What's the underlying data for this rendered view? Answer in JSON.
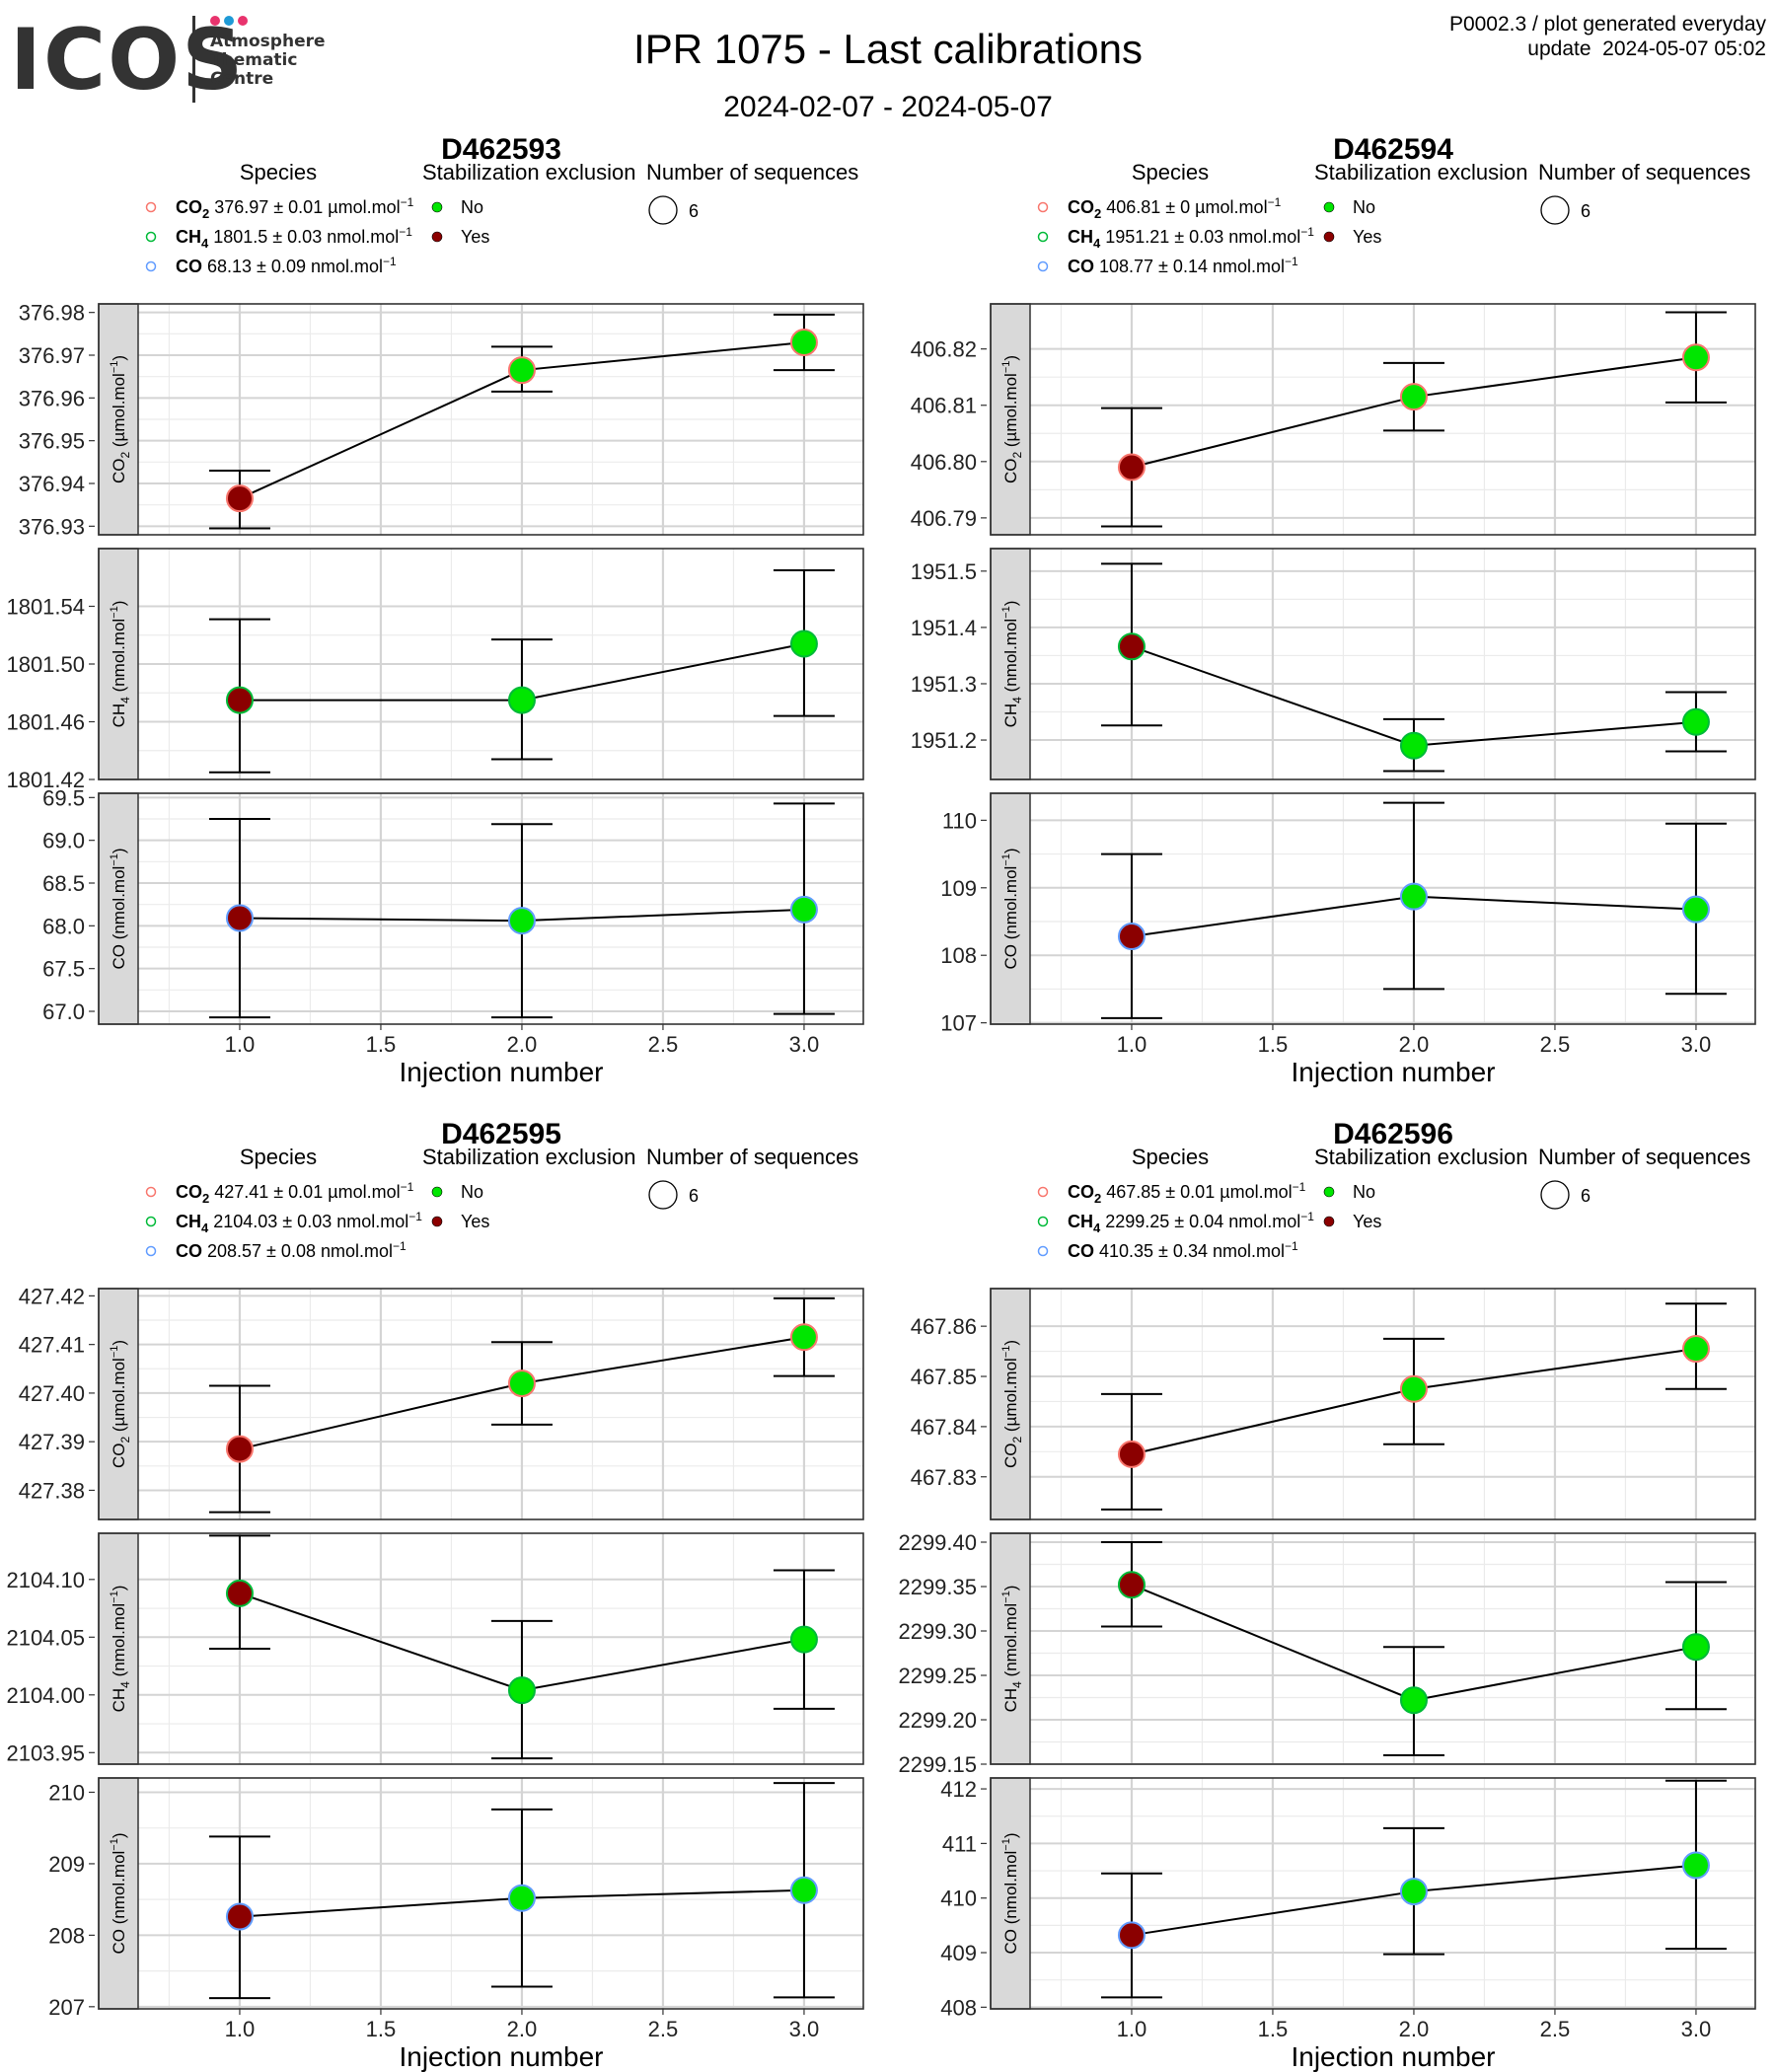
{
  "header": {
    "logo": "ICOS",
    "logo_subtitle": [
      "Atmosphere",
      "Thematic",
      "Centre"
    ],
    "logo_dot_colors": [
      "#e8336d",
      "#1e9ad6",
      "#e8336d"
    ],
    "title": "IPR 1075 - Last calibrations",
    "date_range": "2024-02-07 - 2024-05-07",
    "product_line": "P0002.3 / plot generated everyday",
    "update_line": "update  2024-05-07 05:02"
  },
  "legend_common": {
    "species_title": "Species",
    "stab_title": "Stabilization exclusion",
    "nseq_title": "Number of sequences",
    "stab_items": [
      {
        "label": "No",
        "color": "#00e600"
      },
      {
        "label": "Yes",
        "color": "#8b0000"
      }
    ],
    "species_ring_colors": {
      "CO2": "#f8766d",
      "CH4": "#00ba38",
      "CO": "#619cff"
    }
  },
  "chart_data": [
    {
      "type": "line",
      "title": "D462593",
      "xlabel": "Injection number",
      "x_ticks": [
        "1.0",
        "1.5",
        "2.0",
        "2.5",
        "3.0"
      ],
      "nseq": "6",
      "species_legend": [
        {
          "name": "CO2",
          "value": "376.97",
          "unc": "0.01",
          "unit": "µmol.mol"
        },
        {
          "name": "CH4",
          "value": "1801.5",
          "unc": "0.03",
          "unit": "nmol.mol"
        },
        {
          "name": "CO",
          "value": "68.13",
          "unc": "0.09",
          "unit": "nmol.mol"
        }
      ],
      "panels": [
        {
          "species": "CO2",
          "ylabel_unit": "(µmol.mol",
          "ylim": [
            376.928,
            376.982
          ],
          "ticks": [
            "376.93",
            "376.94",
            "376.95",
            "376.96",
            "376.97",
            "376.98"
          ],
          "x": [
            1,
            2,
            3
          ],
          "y": [
            376.9365,
            376.9665,
            376.973
          ],
          "err_low": [
            376.9295,
            376.9615,
            376.9665
          ],
          "err_high": [
            376.943,
            376.972,
            376.9795
          ],
          "excluded": [
            true,
            false,
            false
          ]
        },
        {
          "species": "CH4",
          "ylabel_unit": "(nmol.mol",
          "ylim": [
            1801.42,
            1801.58
          ],
          "ticks": [
            "1801.42",
            "1801.46",
            "1801.50",
            "1801.54"
          ],
          "x": [
            1,
            2,
            3
          ],
          "y": [
            1801.475,
            1801.475,
            1801.514
          ],
          "err_low": [
            1801.425,
            1801.434,
            1801.464
          ],
          "err_high": [
            1801.531,
            1801.517,
            1801.565
          ],
          "excluded": [
            true,
            false,
            false
          ]
        },
        {
          "species": "CO",
          "ylabel_unit": "(nmol.mol",
          "ylim": [
            66.85,
            69.55
          ],
          "ticks": [
            "67.0",
            "67.5",
            "68.0",
            "68.5",
            "69.0",
            "69.5"
          ],
          "x": [
            1,
            2,
            3
          ],
          "y": [
            68.09,
            68.06,
            68.19
          ],
          "err_low": [
            66.93,
            66.93,
            66.97
          ],
          "err_high": [
            69.25,
            69.19,
            69.43
          ],
          "excluded": [
            true,
            false,
            false
          ]
        }
      ]
    },
    {
      "type": "line",
      "title": "D462594",
      "xlabel": "Injection number",
      "x_ticks": [
        "1.0",
        "1.5",
        "2.0",
        "2.5",
        "3.0"
      ],
      "nseq": "6",
      "species_legend": [
        {
          "name": "CO2",
          "value": "406.81",
          "unc": "0",
          "unit": "µmol.mol"
        },
        {
          "name": "CH4",
          "value": "1951.21",
          "unc": "0.03",
          "unit": "nmol.mol"
        },
        {
          "name": "CO",
          "value": "108.77",
          "unc": "0.14",
          "unit": "nmol.mol"
        }
      ],
      "panels": [
        {
          "species": "CO2",
          "ylabel_unit": "(µmol.mol",
          "ylim": [
            406.787,
            406.828
          ],
          "ticks": [
            "406.79",
            "406.80",
            "406.81",
            "406.82"
          ],
          "x": [
            1,
            2,
            3
          ],
          "y": [
            406.799,
            406.8115,
            406.8185
          ],
          "err_low": [
            406.7885,
            406.8055,
            406.8105
          ],
          "err_high": [
            406.8095,
            406.8175,
            406.8265
          ],
          "excluded": [
            true,
            false,
            false
          ]
        },
        {
          "species": "CH4",
          "ylabel_unit": "(nmol.mol",
          "ylim": [
            1951.13,
            1951.54
          ],
          "ticks": [
            "1951.2",
            "1951.3",
            "1951.4",
            "1951.5"
          ],
          "x": [
            1,
            2,
            3
          ],
          "y": [
            1951.366,
            1951.19,
            1951.232
          ],
          "err_low": [
            1951.226,
            1951.145,
            1951.18
          ],
          "err_high": [
            1951.513,
            1951.237,
            1951.285
          ],
          "excluded": [
            true,
            false,
            false
          ]
        },
        {
          "species": "CO",
          "ylabel_unit": "(nmol.mol",
          "ylim": [
            106.98,
            110.4
          ],
          "ticks": [
            "107",
            "108",
            "109",
            "110"
          ],
          "x": [
            1,
            2,
            3
          ],
          "y": [
            108.28,
            108.87,
            108.68
          ],
          "err_low": [
            107.07,
            107.5,
            107.43
          ],
          "err_high": [
            109.5,
            110.26,
            109.95
          ],
          "excluded": [
            true,
            false,
            false
          ]
        }
      ]
    },
    {
      "type": "line",
      "title": "D462595",
      "xlabel": "Injection number",
      "x_ticks": [
        "1.0",
        "1.5",
        "2.0",
        "2.5",
        "3.0"
      ],
      "nseq": "6",
      "species_legend": [
        {
          "name": "CO2",
          "value": "427.41",
          "unc": "0.01",
          "unit": "µmol.mol"
        },
        {
          "name": "CH4",
          "value": "2104.03",
          "unc": "0.03",
          "unit": "nmol.mol"
        },
        {
          "name": "CO",
          "value": "208.57",
          "unc": "0.08",
          "unit": "nmol.mol"
        }
      ],
      "panels": [
        {
          "species": "CO2",
          "ylabel_unit": "(µmol.mol",
          "ylim": [
            427.374,
            427.4215
          ],
          "ticks": [
            "427.38",
            "427.39",
            "427.40",
            "427.41",
            "427.42"
          ],
          "x": [
            1,
            2,
            3
          ],
          "y": [
            427.3885,
            427.402,
            427.4115
          ],
          "err_low": [
            427.3755,
            427.3935,
            427.4035
          ],
          "err_high": [
            427.4015,
            427.4105,
            427.4195
          ],
          "excluded": [
            true,
            false,
            false
          ]
        },
        {
          "species": "CH4",
          "ylabel_unit": "(nmol.mol",
          "ylim": [
            2103.94,
            2104.14
          ],
          "ticks": [
            "2103.95",
            "2104.00",
            "2104.05",
            "2104.10"
          ],
          "x": [
            1,
            2,
            3
          ],
          "y": [
            2104.088,
            2104.004,
            2104.048
          ],
          "err_low": [
            2104.04,
            2103.945,
            2103.988
          ],
          "err_high": [
            2104.138,
            2104.064,
            2104.108
          ],
          "excluded": [
            true,
            false,
            false
          ]
        },
        {
          "species": "CO",
          "ylabel_unit": "(nmol.mol",
          "ylim": [
            206.97,
            210.2
          ],
          "ticks": [
            "207",
            "208",
            "209",
            "210"
          ],
          "x": [
            1,
            2,
            3
          ],
          "y": [
            208.26,
            208.52,
            208.63
          ],
          "err_low": [
            207.12,
            207.28,
            207.13
          ],
          "err_high": [
            209.38,
            209.76,
            210.13
          ],
          "excluded": [
            true,
            false,
            false
          ]
        }
      ]
    },
    {
      "type": "line",
      "title": "D462596",
      "xlabel": "Injection number",
      "x_ticks": [
        "1.0",
        "1.5",
        "2.0",
        "2.5",
        "3.0"
      ],
      "nseq": "6",
      "species_legend": [
        {
          "name": "CO2",
          "value": "467.85",
          "unc": "0.01",
          "unit": "µmol.mol"
        },
        {
          "name": "CH4",
          "value": "2299.25",
          "unc": "0.04",
          "unit": "nmol.mol"
        },
        {
          "name": "CO",
          "value": "410.35",
          "unc": "0.34",
          "unit": "nmol.mol"
        }
      ],
      "panels": [
        {
          "species": "CO2",
          "ylabel_unit": "(µmol.mol",
          "ylim": [
            467.8215,
            467.8675
          ],
          "ticks": [
            "467.83",
            "467.84",
            "467.85",
            "467.86"
          ],
          "x": [
            1,
            2,
            3
          ],
          "y": [
            467.8345,
            467.8475,
            467.8555
          ],
          "err_low": [
            467.8235,
            467.8365,
            467.8475
          ],
          "err_high": [
            467.8465,
            467.8575,
            467.8645
          ],
          "excluded": [
            true,
            false,
            false
          ]
        },
        {
          "species": "CH4",
          "ylabel_unit": "(nmol.mol",
          "ylim": [
            2299.15,
            2299.41
          ],
          "ticks": [
            "2299.15",
            "2299.20",
            "2299.25",
            "2299.30",
            "2299.35",
            "2299.40"
          ],
          "x": [
            1,
            2,
            3
          ],
          "y": [
            2299.352,
            2299.222,
            2299.282
          ],
          "err_low": [
            2299.305,
            2299.16,
            2299.212
          ],
          "err_high": [
            2299.4,
            2299.282,
            2299.355
          ],
          "excluded": [
            true,
            false,
            false
          ]
        },
        {
          "species": "CO",
          "ylabel_unit": "(nmol.mol",
          "ylim": [
            407.97,
            412.2
          ],
          "ticks": [
            "408",
            "409",
            "410",
            "411",
            "412"
          ],
          "x": [
            1,
            2,
            3
          ],
          "y": [
            409.32,
            410.12,
            410.6
          ],
          "err_low": [
            408.18,
            408.97,
            409.07
          ],
          "err_high": [
            410.45,
            411.28,
            412.15
          ],
          "excluded": [
            true,
            false,
            false
          ]
        }
      ]
    }
  ]
}
